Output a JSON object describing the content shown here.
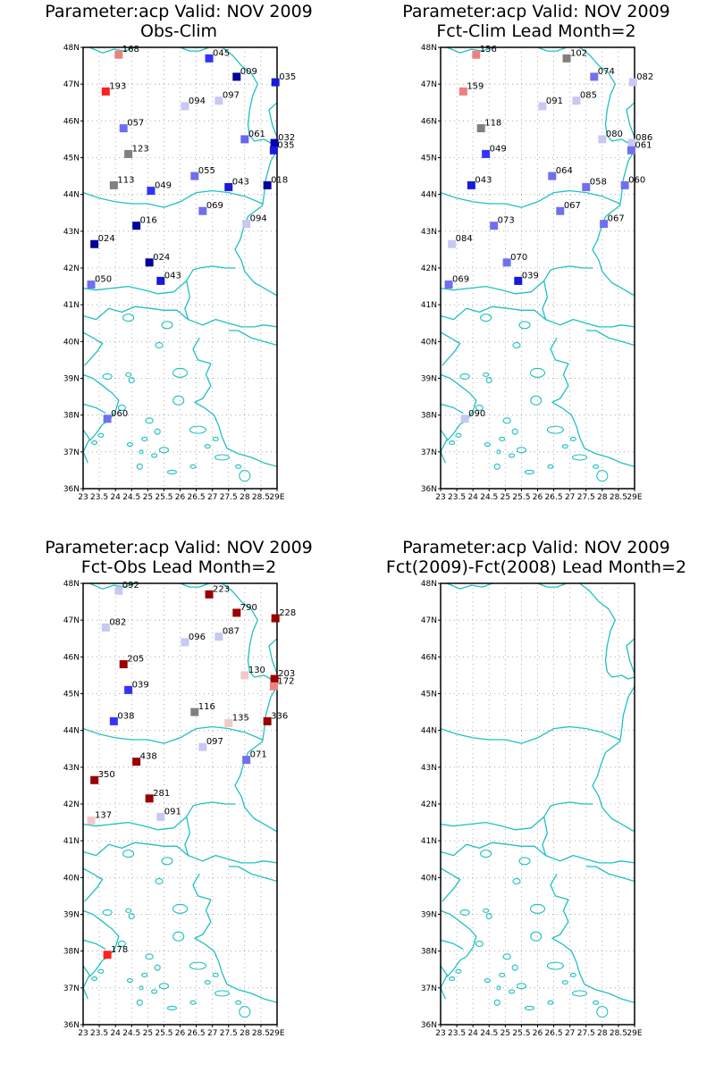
{
  "panels": [
    {
      "title1": "Parameter:acp Valid: NOV 2009",
      "title2": "Obs-Clim",
      "stations": [
        {
          "lon": 24.1,
          "lat": 47.8,
          "label": "168",
          "color": "#f08080"
        },
        {
          "lon": 23.7,
          "lat": 46.8,
          "label": "193",
          "color": "#ff2020"
        },
        {
          "lon": 26.9,
          "lat": 47.7,
          "label": "045",
          "color": "#3333ff"
        },
        {
          "lon": 27.75,
          "lat": 47.2,
          "label": "009",
          "color": "#00009a"
        },
        {
          "lon": 28.95,
          "lat": 47.05,
          "label": "035",
          "color": "#1a1ad8"
        },
        {
          "lon": 27.2,
          "lat": 46.55,
          "label": "097",
          "color": "#c8c8f4"
        },
        {
          "lon": 26.15,
          "lat": 46.4,
          "label": "094",
          "color": "#c8c8f4"
        },
        {
          "lon": 24.25,
          "lat": 45.8,
          "label": "057",
          "color": "#7070ee"
        },
        {
          "lon": 28.0,
          "lat": 45.5,
          "label": "061",
          "color": "#6666ee"
        },
        {
          "lon": 28.92,
          "lat": 45.4,
          "label": "032",
          "color": "#0000b0"
        },
        {
          "lon": 28.9,
          "lat": 45.2,
          "label": "035",
          "color": "#1a1ad8"
        },
        {
          "lon": 24.4,
          "lat": 45.1,
          "label": "123",
          "color": "#808080"
        },
        {
          "lon": 26.45,
          "lat": 44.5,
          "label": "055",
          "color": "#7070ee"
        },
        {
          "lon": 23.95,
          "lat": 44.25,
          "label": "113",
          "color": "#808080"
        },
        {
          "lon": 25.1,
          "lat": 44.1,
          "label": "049",
          "color": "#3333ff"
        },
        {
          "lon": 27.5,
          "lat": 44.2,
          "label": "043",
          "color": "#1a1ad8"
        },
        {
          "lon": 28.7,
          "lat": 44.25,
          "label": "018",
          "color": "#00009a"
        },
        {
          "lon": 26.7,
          "lat": 43.55,
          "label": "069",
          "color": "#7070ee"
        },
        {
          "lon": 28.05,
          "lat": 43.2,
          "label": "094",
          "color": "#c8c8f4"
        },
        {
          "lon": 24.65,
          "lat": 43.15,
          "label": "016",
          "color": "#00009a"
        },
        {
          "lon": 23.35,
          "lat": 42.65,
          "label": "024",
          "color": "#00009a"
        },
        {
          "lon": 25.05,
          "lat": 42.15,
          "label": "024",
          "color": "#00009a"
        },
        {
          "lon": 25.4,
          "lat": 41.65,
          "label": "043",
          "color": "#1a1ad8"
        },
        {
          "lon": 23.25,
          "lat": 41.55,
          "label": "050",
          "color": "#7070ee"
        },
        {
          "lon": 23.75,
          "lat": 37.9,
          "label": "060",
          "color": "#7070ee"
        }
      ]
    },
    {
      "title1": "Parameter:acp Valid: NOV 2009",
      "title2": "Fct-Clim Lead Month=2",
      "stations": [
        {
          "lon": 24.1,
          "lat": 47.8,
          "label": "156",
          "color": "#f08080"
        },
        {
          "lon": 23.7,
          "lat": 46.8,
          "label": "159",
          "color": "#f08080"
        },
        {
          "lon": 26.9,
          "lat": 47.7,
          "label": "102",
          "color": "#808080"
        },
        {
          "lon": 27.75,
          "lat": 47.2,
          "label": "074",
          "color": "#7070ee"
        },
        {
          "lon": 28.95,
          "lat": 47.05,
          "label": "082",
          "color": "#c8c8f4"
        },
        {
          "lon": 27.2,
          "lat": 46.55,
          "label": "085",
          "color": "#c8c8f4"
        },
        {
          "lon": 26.15,
          "lat": 46.4,
          "label": "091",
          "color": "#c8c8f4"
        },
        {
          "lon": 24.25,
          "lat": 45.8,
          "label": "118",
          "color": "#808080"
        },
        {
          "lon": 28.0,
          "lat": 45.5,
          "label": "080",
          "color": "#c8c8f4"
        },
        {
          "lon": 28.92,
          "lat": 45.4,
          "label": "086",
          "color": "#c8c8f4"
        },
        {
          "lon": 28.9,
          "lat": 45.2,
          "label": "061",
          "color": "#7070ee"
        },
        {
          "lon": 24.4,
          "lat": 45.1,
          "label": "049",
          "color": "#3333ff"
        },
        {
          "lon": 26.45,
          "lat": 44.5,
          "label": "064",
          "color": "#7070ee"
        },
        {
          "lon": 23.95,
          "lat": 44.25,
          "label": "043",
          "color": "#1a1ad8"
        },
        {
          "lon": 27.5,
          "lat": 44.2,
          "label": "058",
          "color": "#7070ee"
        },
        {
          "lon": 28.7,
          "lat": 44.25,
          "label": "060",
          "color": "#7070ee"
        },
        {
          "lon": 26.7,
          "lat": 43.55,
          "label": "067",
          "color": "#7070ee"
        },
        {
          "lon": 28.05,
          "lat": 43.2,
          "label": "067",
          "color": "#7070ee"
        },
        {
          "lon": 24.65,
          "lat": 43.15,
          "label": "073",
          "color": "#7070ee"
        },
        {
          "lon": 23.35,
          "lat": 42.65,
          "label": "084",
          "color": "#c8c8f4"
        },
        {
          "lon": 25.05,
          "lat": 42.15,
          "label": "070",
          "color": "#7070ee"
        },
        {
          "lon": 25.4,
          "lat": 41.65,
          "label": "039",
          "color": "#1a1ad8"
        },
        {
          "lon": 23.25,
          "lat": 41.55,
          "label": "069",
          "color": "#7070ee"
        },
        {
          "lon": 23.75,
          "lat": 37.9,
          "label": "090",
          "color": "#c8c8f4"
        }
      ]
    },
    {
      "title1": "Parameter:acp Valid: NOV 2009",
      "title2": "Fct-Obs Lead Month=2",
      "stations": [
        {
          "lon": 24.1,
          "lat": 47.8,
          "label": "092",
          "color": "#c8c8f4"
        },
        {
          "lon": 23.7,
          "lat": 46.8,
          "label": "082",
          "color": "#c8c8f4"
        },
        {
          "lon": 26.9,
          "lat": 47.7,
          "label": "223",
          "color": "#990000"
        },
        {
          "lon": 27.75,
          "lat": 47.2,
          "label": "790",
          "color": "#990000"
        },
        {
          "lon": 28.95,
          "lat": 47.05,
          "label": "228",
          "color": "#990000"
        },
        {
          "lon": 27.2,
          "lat": 46.55,
          "label": "087",
          "color": "#c8c8f4"
        },
        {
          "lon": 26.15,
          "lat": 46.4,
          "label": "096",
          "color": "#c8c8f4"
        },
        {
          "lon": 24.25,
          "lat": 45.8,
          "label": "205",
          "color": "#990000"
        },
        {
          "lon": 28.0,
          "lat": 45.5,
          "label": "130",
          "color": "#f4c8c8"
        },
        {
          "lon": 28.92,
          "lat": 45.4,
          "label": "203",
          "color": "#990000"
        },
        {
          "lon": 28.9,
          "lat": 45.2,
          "label": "172",
          "color": "#f08080"
        },
        {
          "lon": 24.4,
          "lat": 45.1,
          "label": "039",
          "color": "#3333ff"
        },
        {
          "lon": 26.45,
          "lat": 44.5,
          "label": "116",
          "color": "#808080"
        },
        {
          "lon": 23.95,
          "lat": 44.25,
          "label": "038",
          "color": "#3333ff"
        },
        {
          "lon": 27.5,
          "lat": 44.2,
          "label": "135",
          "color": "#f4c8c8"
        },
        {
          "lon": 28.7,
          "lat": 44.25,
          "label": "336",
          "color": "#990000"
        },
        {
          "lon": 26.7,
          "lat": 43.55,
          "label": "097",
          "color": "#c8c8f4"
        },
        {
          "lon": 28.05,
          "lat": 43.2,
          "label": "071",
          "color": "#7070ee"
        },
        {
          "lon": 24.65,
          "lat": 43.15,
          "label": "438",
          "color": "#990000"
        },
        {
          "lon": 23.35,
          "lat": 42.65,
          "label": "350",
          "color": "#990000"
        },
        {
          "lon": 25.05,
          "lat": 42.15,
          "label": "281",
          "color": "#990000"
        },
        {
          "lon": 25.4,
          "lat": 41.65,
          "label": "091",
          "color": "#c8c8f4"
        },
        {
          "lon": 23.25,
          "lat": 41.55,
          "label": "137",
          "color": "#f4c8c8"
        },
        {
          "lon": 23.75,
          "lat": 37.9,
          "label": "178",
          "color": "#ff2020"
        }
      ]
    },
    {
      "title1": "Parameter:acp Valid: NOV 2009",
      "title2": "Fct(2009)-Fct(2008) Lead Month=2",
      "stations": []
    }
  ],
  "axes": {
    "lat_ticks": [
      "36N",
      "37N",
      "38N",
      "39N",
      "40N",
      "41N",
      "42N",
      "43N",
      "44N",
      "45N",
      "46N",
      "47N",
      "48N"
    ],
    "lon_ticks": [
      "23",
      "23.5",
      "24",
      "24.5",
      "25",
      "25.5",
      "26",
      "26.5",
      "27",
      "27.5",
      "28",
      "28.5",
      "29E"
    ],
    "lat_range": [
      36,
      48
    ],
    "lon_range": [
      23,
      29
    ]
  },
  "coast_color": "#20c0c0"
}
